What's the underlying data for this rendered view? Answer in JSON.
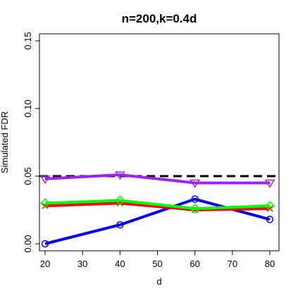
{
  "chart_data": {
    "type": "line",
    "title": "n=200,k=0.4d",
    "xlabel": "d",
    "ylabel": "Simulated FDR",
    "x": [
      20,
      40,
      60,
      80
    ],
    "xlim": [
      20,
      80
    ],
    "ylim": [
      0,
      0.15
    ],
    "xticks": [
      "20",
      "30",
      "40",
      "50",
      "60",
      "70",
      "80"
    ],
    "yticks": [
      "0.00",
      "0.05",
      "0.10",
      "0.15"
    ],
    "reference_line": {
      "y": 0.05,
      "style": "dashed",
      "color": "#000000"
    },
    "grid": false,
    "series": [
      {
        "color": "#0000ff",
        "marker": "circle",
        "values": [
          0.0,
          0.014,
          0.033,
          0.018
        ]
      },
      {
        "color": "#ff0000",
        "marker": "cross",
        "values": [
          0.028,
          0.03,
          0.025,
          0.026
        ]
      },
      {
        "color": "#00ff00",
        "marker": "diamond",
        "values": [
          0.03,
          0.032,
          0.026,
          0.028
        ]
      },
      {
        "color": "#a020f0",
        "marker": "triangle-down",
        "values": [
          0.048,
          0.051,
          0.045,
          0.045
        ]
      }
    ]
  }
}
